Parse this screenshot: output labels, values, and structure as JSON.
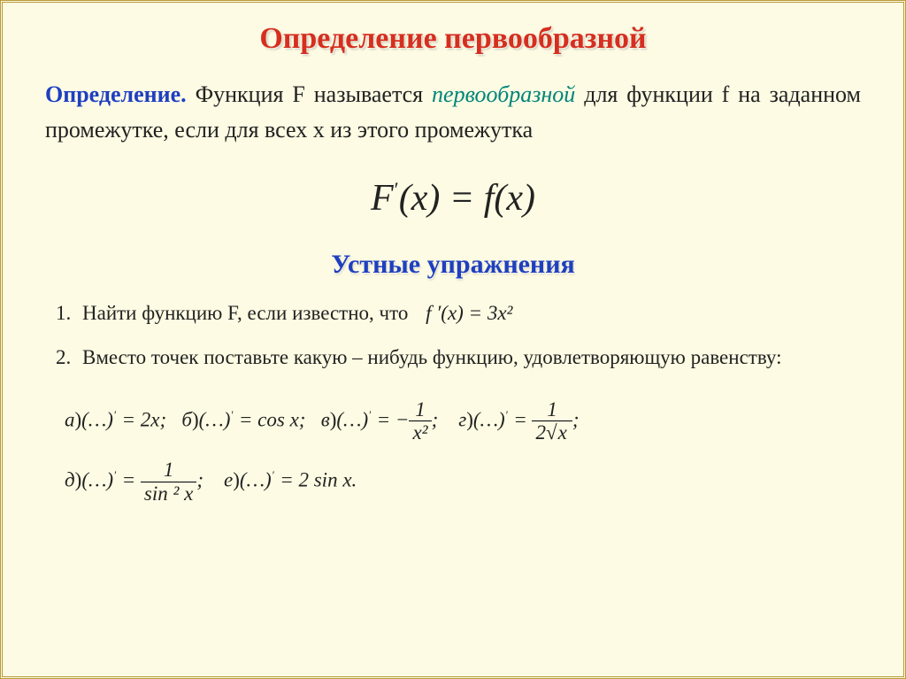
{
  "title": "Определение первообразной",
  "definition": {
    "label": "Определение.",
    "text_pre": " Функция F называется ",
    "term": "первообразной",
    "text_post": " для функции f на заданном промежутке, если для всех x из этого промежутка"
  },
  "main_equation": {
    "lhs_var": "F",
    "prime": "′",
    "arg": "(x)",
    "eq": " = ",
    "rhs_var": "f",
    "rhs_arg": "(x)"
  },
  "subtitle": "Устные упражнения",
  "exercises": {
    "item1": {
      "num": "1.",
      "text": "Найти функцию F, если известно, что",
      "eq": "f ′(x) = 3x²"
    },
    "item2": {
      "num": "2.",
      "text": "Вместо точек поставьте какую – нибудь функцию, удовлетворяющую равенству:"
    }
  },
  "eq_parts": {
    "a_label": "а",
    "b_label": "б",
    "v_label": "в",
    "g_label": "г",
    "d_label": "д",
    "e_label": "е",
    "dots": "(…)",
    "prime": "′",
    "eq2x": " = 2x;",
    "eqcos": " = cos x;",
    "eqneg": " = −",
    "frac_v": {
      "num": "1",
      "den": "x²"
    },
    "semic": ";",
    "eq_g": " = ",
    "frac_g": {
      "num": "1",
      "den_pre": "2",
      "den_rad": "x"
    },
    "frac_d": {
      "num": "1",
      "den": "sin ² x"
    },
    "eq2sin": " = 2 sin  x.",
    "close_paren": ")"
  },
  "colors": {
    "background": "#fdfbe3",
    "border": "#b89a3a",
    "title": "#d62e1f",
    "blue": "#1f3fbf",
    "teal": "#00857a",
    "body": "#222"
  }
}
